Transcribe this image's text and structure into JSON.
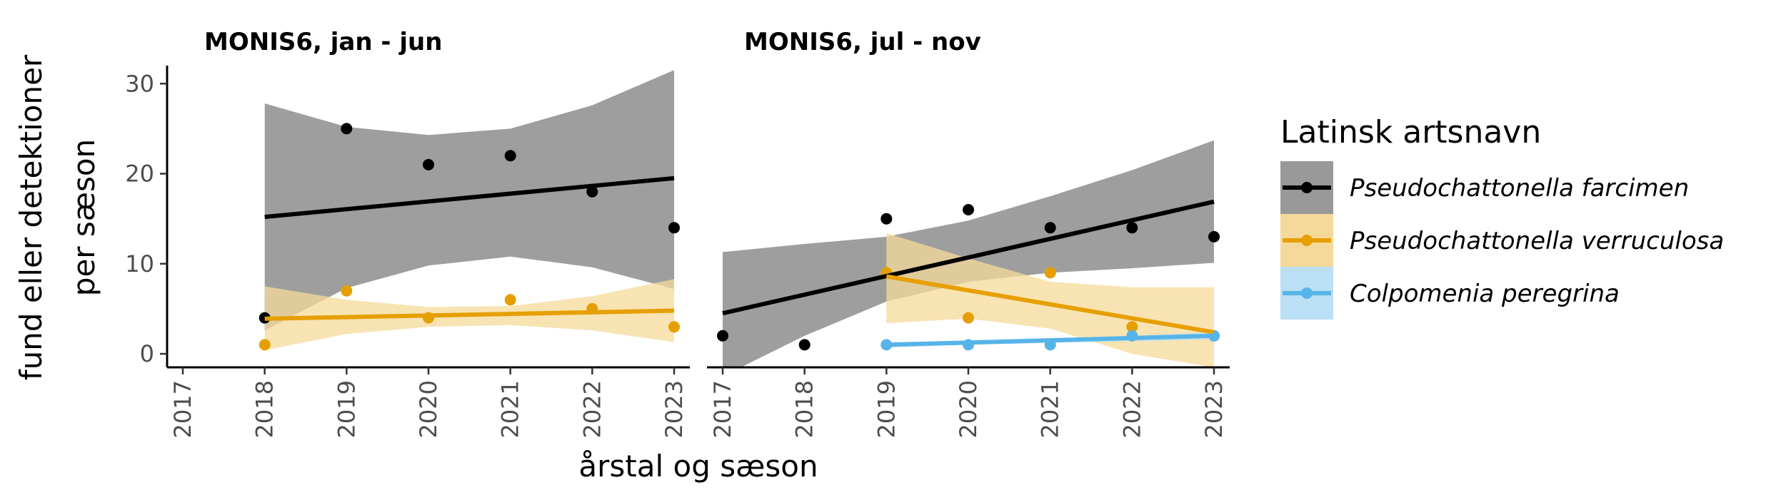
{
  "chart_data": {
    "type": "scatter",
    "xlabel": "årstal og sæson",
    "ylabel_lines": [
      "fund eller detektioner",
      "per sæson"
    ],
    "legend_title": "Latinsk artsnavn",
    "legend_position": "right",
    "grid": false,
    "x_ticks": [
      "2017",
      "2018",
      "2019",
      "2020",
      "2021",
      "2022",
      "2023"
    ],
    "xlim": [
      2017,
      2023
    ],
    "ylim": [
      -1.5,
      32
    ],
    "y_ticks": [
      0,
      10,
      20,
      30
    ],
    "series": [
      {
        "name": "Pseudochattonella farcimen",
        "color": "#000000",
        "ribbon_color": "#999999"
      },
      {
        "name": "Pseudochattonella verruculosa",
        "color": "#E69F00",
        "ribbon_color": "#F5D99A"
      },
      {
        "name": "Colpomenia peregrina",
        "color": "#56B4E9",
        "ribbon_color": "#BBDFF5"
      }
    ],
    "panels": [
      {
        "title": "MONIS6, jan - jun",
        "points": [
          {
            "series": 0,
            "x": [
              2018,
              2019,
              2020,
              2021,
              2022,
              2023
            ],
            "y": [
              4,
              25,
              21,
              22,
              18,
              14
            ]
          },
          {
            "series": 1,
            "x": [
              2018,
              2019,
              2020,
              2021,
              2022,
              2023
            ],
            "y": [
              1,
              7,
              4,
              6,
              5,
              3
            ]
          }
        ],
        "fits": [
          {
            "series": 0,
            "x": [
              2018,
              2023
            ],
            "y": [
              15.2,
              19.5
            ],
            "band_x": [
              2018,
              2019,
              2020,
              2021,
              2022,
              2023
            ],
            "band_low": [
              2.6,
              7.3,
              9.8,
              10.8,
              9.6,
              7.2
            ],
            "band_high": [
              27.8,
              25.2,
              24.3,
              25.0,
              27.6,
              31.5
            ]
          },
          {
            "series": 1,
            "x": [
              2018,
              2023
            ],
            "y": [
              3.9,
              4.8
            ],
            "band_x": [
              2018,
              2019,
              2020,
              2021,
              2022,
              2023
            ],
            "band_low": [
              0.4,
              2.2,
              3.0,
              3.2,
              2.6,
              1.3
            ],
            "band_high": [
              7.5,
              6.0,
              5.2,
              5.3,
              6.4,
              8.3
            ]
          }
        ]
      },
      {
        "title": "MONIS6, jul - nov",
        "points": [
          {
            "series": 0,
            "x": [
              2017,
              2018,
              2019,
              2020,
              2021,
              2022,
              2023
            ],
            "y": [
              2,
              1,
              15,
              16,
              14,
              14,
              13
            ]
          },
          {
            "series": 1,
            "x": [
              2019,
              2020,
              2021,
              2022,
              2023
            ],
            "y": [
              9,
              4,
              9,
              3,
              2
            ]
          },
          {
            "series": 2,
            "x": [
              2019,
              2020,
              2021,
              2022,
              2023
            ],
            "y": [
              1,
              1,
              1,
              2,
              2
            ]
          }
        ],
        "fits": [
          {
            "series": 0,
            "x": [
              2017,
              2023
            ],
            "y": [
              4.5,
              16.9
            ],
            "band_x": [
              2017,
              2018,
              2019,
              2020,
              2021,
              2022,
              2023
            ],
            "band_low": [
              -2.5,
              2.0,
              5.8,
              8.0,
              9.0,
              9.5,
              10.1
            ],
            "band_high": [
              11.3,
              12.2,
              13.0,
              14.8,
              17.5,
              20.4,
              23.7
            ]
          },
          {
            "series": 1,
            "x": [
              2019,
              2023
            ],
            "y": [
              8.6,
              2.4
            ],
            "band_x": [
              2019,
              2020,
              2021,
              2022,
              2023
            ],
            "band_low": [
              3.4,
              3.9,
              2.8,
              0.0,
              -1.5
            ],
            "band_high": [
              13.4,
              10.6,
              8.0,
              7.4,
              7.4
            ]
          },
          {
            "series": 2,
            "x": [
              2019,
              2023
            ],
            "y": [
              1.0,
              2.0
            ],
            "band_x": [
              2019,
              2020,
              2021,
              2022,
              2023
            ],
            "band_low": [
              0.7,
              1.0,
              1.2,
              1.4,
              1.6
            ],
            "band_high": [
              1.3,
              1.4,
              1.6,
              2.0,
              2.4
            ]
          }
        ]
      }
    ]
  }
}
